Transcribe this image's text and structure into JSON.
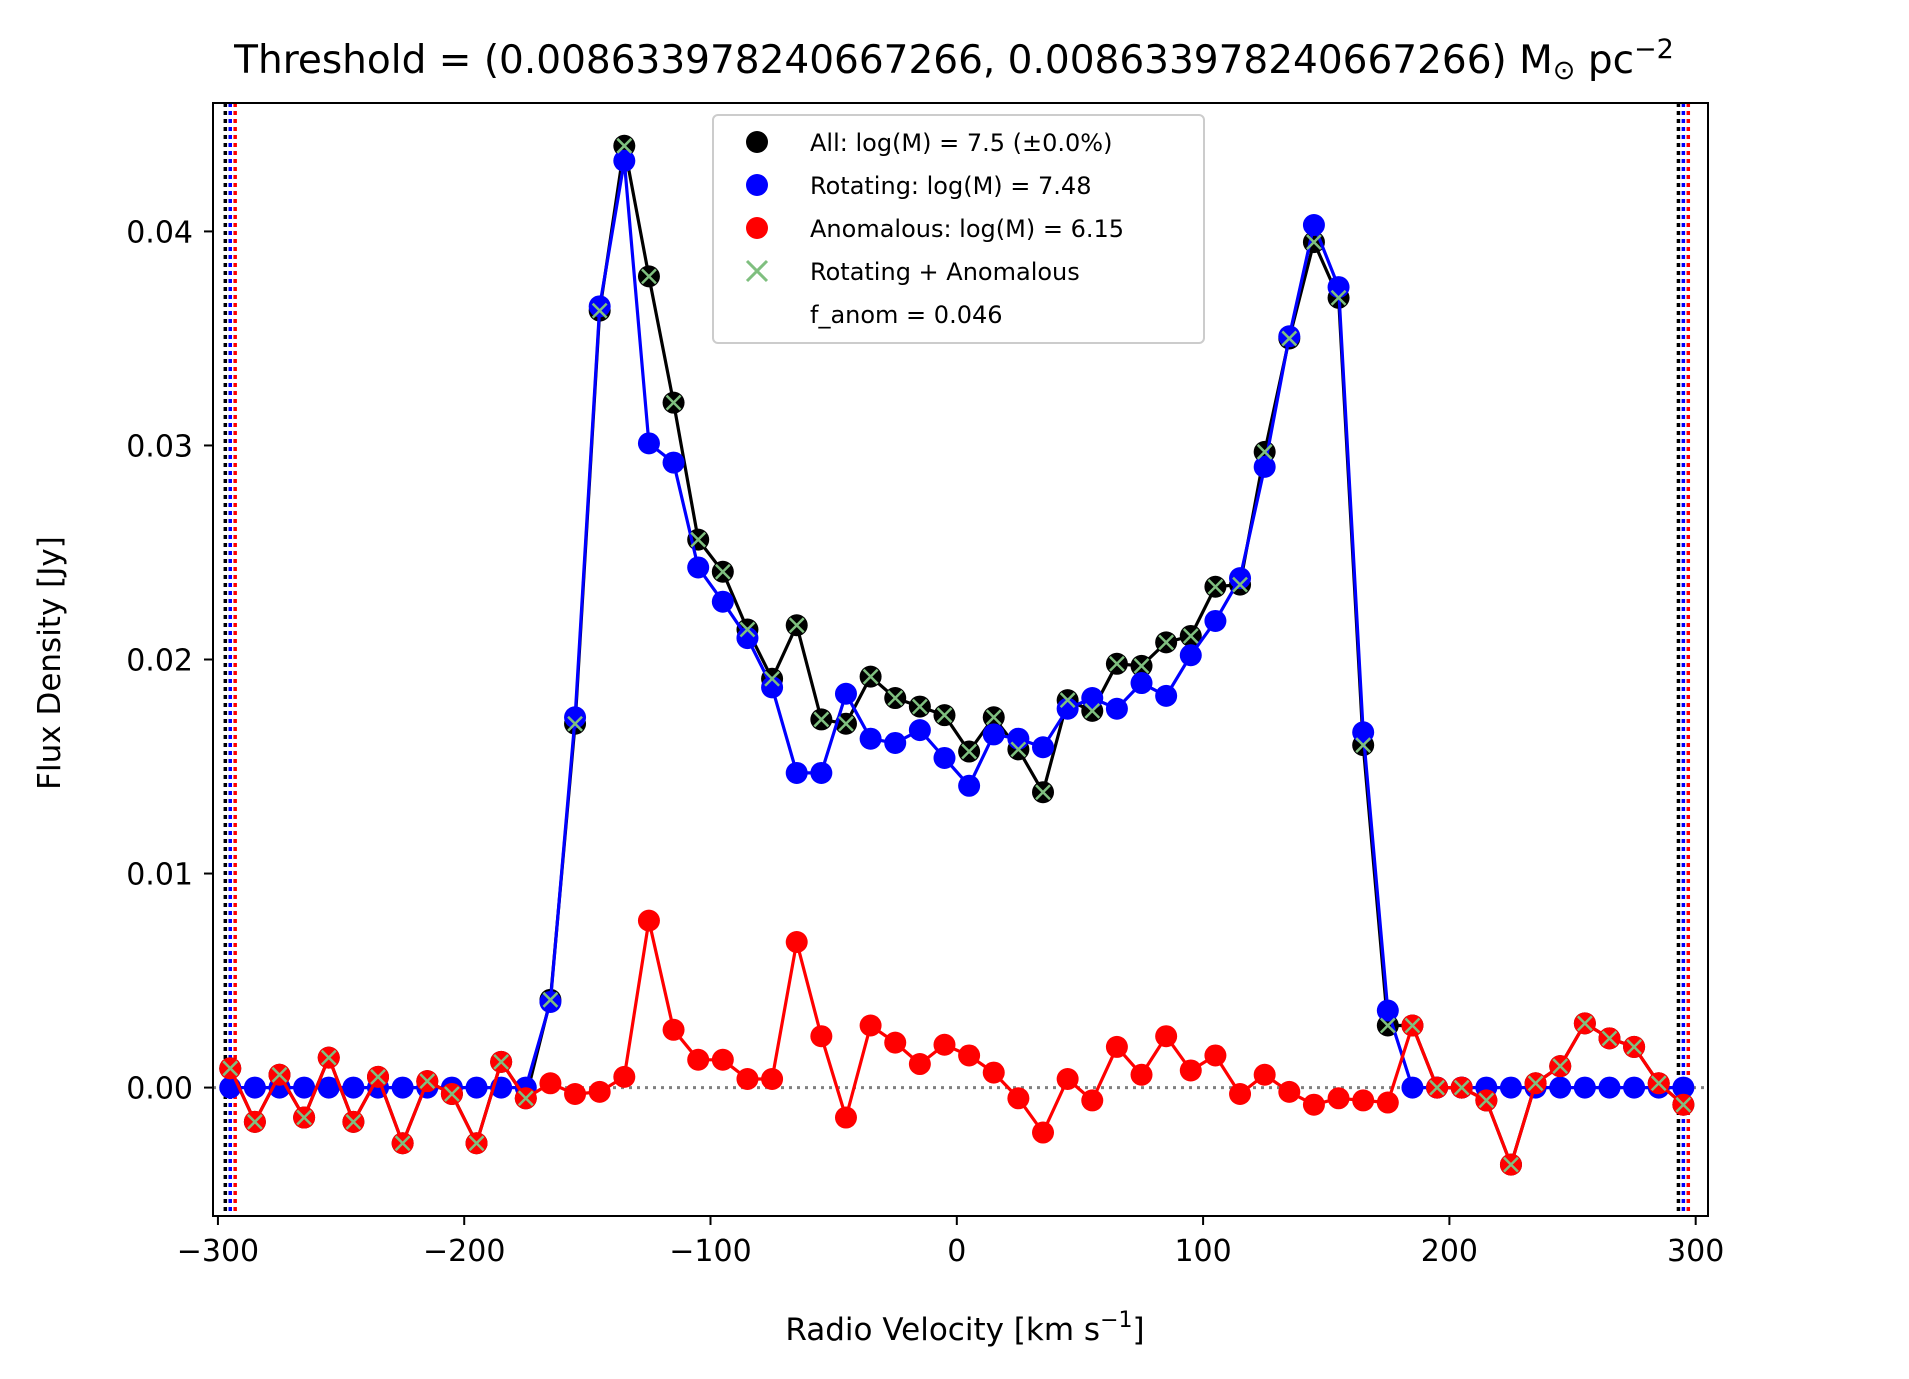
{
  "chart_data": {
    "type": "line",
    "title": {
      "main": "Threshold = (0.008633978240667266, 0.008633978240667266) M",
      "sub": "⊙",
      "unit": " pc",
      "sup": "−2"
    },
    "xlabel": {
      "main": "Radio Velocity [km s",
      "sup": "−1",
      "end": "]"
    },
    "ylabel": "Flux Density [Jy]",
    "xlim": [
      -302,
      305
    ],
    "ylim": [
      -0.006,
      0.046
    ],
    "x_ticks": [
      -300,
      -200,
      -100,
      0,
      100,
      200,
      300
    ],
    "x_tick_labels": [
      "−300",
      "−200",
      "−100",
      "0",
      "100",
      "200",
      "300"
    ],
    "y_ticks": [
      0.0,
      0.01,
      0.02,
      0.03,
      0.04
    ],
    "y_tick_labels": [
      "0.00",
      "0.01",
      "0.02",
      "0.03",
      "0.04"
    ],
    "grid": false,
    "legend_position": "top-center",
    "x": [
      -295,
      -285,
      -275,
      -265,
      -255,
      -245,
      -235,
      -225,
      -215,
      -205,
      -195,
      -185,
      -175,
      -165,
      -155,
      -145,
      -135,
      -125,
      -115,
      -105,
      -95,
      -85,
      -75,
      -65,
      -55,
      -45,
      -35,
      -25,
      -15,
      -5,
      5,
      15,
      25,
      35,
      45,
      55,
      65,
      75,
      85,
      95,
      105,
      115,
      125,
      135,
      145,
      155,
      165,
      175,
      185,
      195,
      205,
      215,
      225,
      235,
      245,
      255,
      265,
      275,
      285,
      295
    ],
    "series": [
      {
        "name": "All: log(M) = 7.5 (±0.0%)",
        "color": "#000000",
        "values": [
          0.0009,
          -0.0016,
          0.0006,
          -0.0014,
          0.0014,
          -0.0016,
          0.0005,
          -0.0026,
          0.0003,
          -0.0003,
          -0.0026,
          0.0012,
          -0.0005,
          0.0041,
          0.017,
          0.0363,
          0.044,
          0.0379,
          0.032,
          0.0256,
          0.0241,
          0.0214,
          0.0191,
          0.0216,
          0.0172,
          0.017,
          0.0192,
          0.0182,
          0.0178,
          0.0174,
          0.0157,
          0.0173,
          0.0158,
          0.0138,
          0.0181,
          0.0176,
          0.0198,
          0.0197,
          0.0208,
          0.0211,
          0.0234,
          0.0235,
          0.0297,
          0.035,
          0.0395,
          0.0369,
          0.016,
          0.0029,
          0.0029,
          0.0,
          0.0,
          -0.0006,
          -0.0036,
          0.0002,
          0.001,
          0.003,
          0.0023,
          0.0019,
          0.0002,
          -0.0008
        ]
      },
      {
        "name": "Rotating: log(M) = 7.48",
        "color": "#0000ff",
        "values": [
          0.0,
          0.0,
          0.0,
          0.0,
          0.0,
          0.0,
          0.0,
          0.0,
          0.0,
          0.0,
          0.0,
          0.0,
          0.0,
          0.004,
          0.0173,
          0.0365,
          0.0433,
          0.0301,
          0.0292,
          0.0243,
          0.0227,
          0.021,
          0.0187,
          0.0147,
          0.0147,
          0.0184,
          0.0163,
          0.0161,
          0.0167,
          0.0154,
          0.0141,
          0.0165,
          0.0163,
          0.0159,
          0.0177,
          0.0182,
          0.0177,
          0.0189,
          0.0183,
          0.0202,
          0.0218,
          0.0238,
          0.029,
          0.0351,
          0.0403,
          0.0374,
          0.0166,
          0.0036,
          0.0,
          0.0,
          0.0,
          0.0,
          0.0,
          0.0,
          0.0,
          0.0,
          0.0,
          0.0,
          0.0,
          0.0
        ]
      },
      {
        "name": "Anomalous: log(M) = 6.15",
        "color": "#ff0000",
        "values": [
          0.0009,
          -0.0016,
          0.0006,
          -0.0014,
          0.0014,
          -0.0016,
          0.0005,
          -0.0026,
          0.0003,
          -0.0003,
          -0.0026,
          0.0012,
          -0.0005,
          0.0002,
          -0.0003,
          -0.0002,
          0.0005,
          0.0078,
          0.0027,
          0.0013,
          0.0013,
          0.0004,
          0.0004,
          0.0068,
          0.0024,
          -0.0014,
          0.0029,
          0.0021,
          0.0011,
          0.002,
          0.0015,
          0.0007,
          -0.0005,
          -0.0021,
          0.0004,
          -0.0006,
          0.0019,
          0.0006,
          0.0024,
          0.0008,
          0.0015,
          -0.0003,
          0.0006,
          -0.0002,
          -0.0008,
          -0.0005,
          -0.0006,
          -0.0007,
          0.0029,
          0.0,
          0.0,
          -0.0006,
          -0.0036,
          0.0002,
          0.001,
          0.003,
          0.0023,
          0.0019,
          0.0002,
          -0.0008
        ]
      },
      {
        "name": "Rotating + Anomalous",
        "color": "#7fbf7f",
        "marker": "x",
        "same_as": "All"
      }
    ],
    "legend_note": "f_anom = 0.046",
    "vlines": [
      {
        "x": -297,
        "color": "#000000",
        "style": "dotted"
      },
      {
        "x": -295,
        "color": "#0000ff",
        "style": "dotted"
      },
      {
        "x": -293,
        "color": "#ff0000",
        "style": "dotted"
      },
      {
        "x": 293,
        "color": "#000000",
        "style": "dotted"
      },
      {
        "x": 295,
        "color": "#0000ff",
        "style": "dotted"
      },
      {
        "x": 297,
        "color": "#ff0000",
        "style": "dotted"
      }
    ],
    "hline": {
      "y": 0,
      "color": "#808080",
      "style": "dotted"
    }
  }
}
